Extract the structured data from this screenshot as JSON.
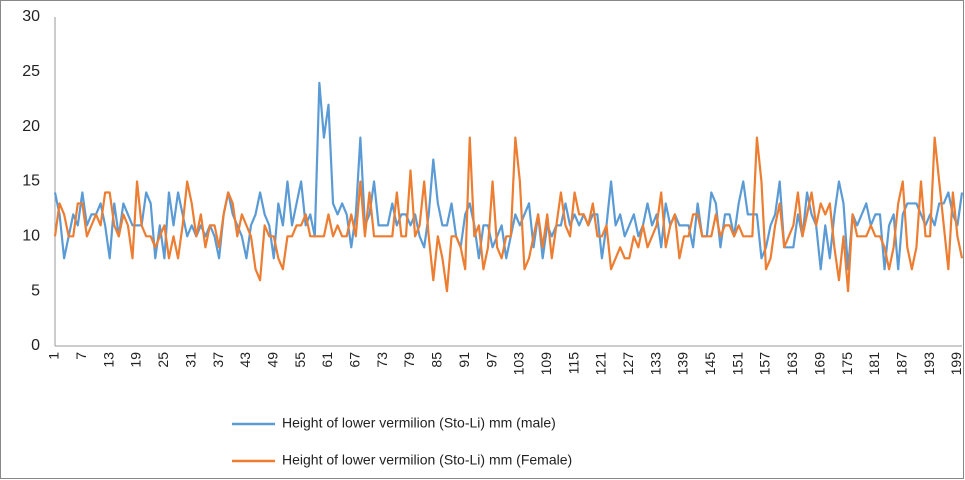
{
  "chart_data": {
    "type": "line",
    "categories": [
      1,
      null,
      null,
      null,
      null,
      null,
      7,
      null,
      null,
      null,
      null,
      null,
      13,
      null,
      null,
      null,
      null,
      null,
      19,
      null,
      null,
      null,
      null,
      null,
      25,
      null,
      null,
      null,
      null,
      null,
      31,
      null,
      null,
      null,
      null,
      null,
      37,
      null,
      null,
      null,
      null,
      null,
      43,
      null,
      null,
      null,
      null,
      null,
      49,
      null,
      null,
      null,
      null,
      null,
      55,
      null,
      null,
      null,
      null,
      null,
      61,
      null,
      null,
      null,
      null,
      null,
      67,
      null,
      null,
      null,
      null,
      null,
      73,
      null,
      null,
      null,
      null,
      null,
      79,
      null,
      null,
      null,
      null,
      null,
      85,
      null,
      null,
      null,
      null,
      null,
      91,
      null,
      null,
      null,
      null,
      null,
      97,
      null,
      null,
      null,
      null,
      null,
      103,
      null,
      null,
      null,
      null,
      null,
      109,
      null,
      null,
      null,
      null,
      null,
      115,
      null,
      null,
      null,
      null,
      null,
      121,
      null,
      null,
      null,
      null,
      null,
      127,
      null,
      null,
      null,
      null,
      null,
      133,
      null,
      null,
      null,
      null,
      null,
      139,
      null,
      null,
      null,
      null,
      null,
      145,
      null,
      null,
      null,
      null,
      null,
      151,
      null,
      null,
      null,
      null,
      null,
      157,
      null,
      null,
      null,
      null,
      null,
      163,
      null,
      null,
      null,
      null,
      null,
      169,
      null,
      null,
      null,
      null,
      null,
      175,
      null,
      null,
      null,
      null,
      null,
      181,
      null,
      null,
      null,
      null,
      null,
      187,
      null,
      null,
      null,
      null,
      null,
      193,
      null,
      null,
      null,
      null,
      null,
      199,
      null
    ],
    "series": [
      {
        "name": "Height of lower vermilion (Sto-Li) mm (male)",
        "color": "#5b9bd5",
        "values": [
          14,
          12,
          8,
          10,
          12,
          11,
          14,
          11,
          12,
          12,
          13,
          11,
          8,
          13,
          10,
          13,
          12,
          11,
          11,
          11,
          14,
          13,
          8,
          11,
          8,
          14,
          11,
          14,
          12,
          10,
          11,
          10,
          11,
          10,
          11,
          10,
          8,
          12,
          14,
          12,
          11,
          10,
          8,
          11,
          12,
          14,
          12,
          11,
          8,
          13,
          11,
          15,
          11,
          13,
          15,
          11,
          12,
          10,
          24,
          19,
          22,
          13,
          12,
          13,
          12,
          9,
          12,
          19,
          11,
          12,
          15,
          11,
          11,
          11,
          13,
          11,
          12,
          12,
          11,
          12,
          10,
          9,
          12,
          17,
          13,
          11,
          11,
          13,
          10,
          9,
          12,
          13,
          11,
          8,
          11,
          11,
          9,
          10,
          11,
          8,
          10,
          12,
          11,
          12,
          13,
          9,
          12,
          8,
          11,
          10,
          11,
          11,
          13,
          11,
          12,
          11,
          12,
          11,
          12,
          12,
          8,
          11,
          15,
          11,
          12,
          10,
          11,
          12,
          10,
          11,
          13,
          11,
          12,
          9,
          13,
          11,
          12,
          11,
          11,
          11,
          9,
          13,
          10,
          10,
          14,
          13,
          9,
          12,
          12,
          10,
          13,
          15,
          12,
          12,
          12,
          8,
          9,
          11,
          12,
          15,
          9,
          9,
          9,
          12,
          10,
          14,
          12,
          11,
          7,
          11,
          8,
          12,
          15,
          13,
          7,
          12,
          11,
          12,
          13,
          11,
          12,
          12,
          7,
          11,
          12,
          7,
          12,
          13,
          13,
          13,
          12,
          11,
          12,
          11,
          13,
          13,
          14,
          12,
          11,
          14
        ]
      },
      {
        "name": "Height of lower vermilion (Sto-Li) mm (Female)",
        "color": "#ed7d31",
        "values": [
          10,
          13,
          12,
          10,
          10,
          13,
          13,
          10,
          11,
          12,
          11,
          14,
          14,
          11,
          10,
          12,
          11,
          8,
          15,
          11,
          10,
          10,
          9,
          10,
          11,
          8,
          10,
          8,
          11,
          15,
          13,
          10,
          12,
          9,
          11,
          11,
          9,
          12,
          14,
          13,
          10,
          12,
          11,
          10,
          7,
          6,
          11,
          10,
          10,
          8,
          7,
          10,
          10,
          11,
          11,
          12,
          10,
          10,
          10,
          10,
          12,
          10,
          11,
          10,
          10,
          12,
          10,
          15,
          10,
          14,
          10,
          10,
          10,
          10,
          10,
          14,
          10,
          10,
          16,
          10,
          11,
          15,
          10,
          6,
          10,
          8,
          5,
          10,
          10,
          9,
          7,
          19,
          10,
          11,
          7,
          9,
          15,
          9,
          8,
          10,
          10,
          19,
          15,
          7,
          8,
          10,
          12,
          9,
          12,
          8,
          11,
          14,
          11,
          10,
          14,
          12,
          12,
          11,
          13,
          10,
          10,
          11,
          7,
          8,
          9,
          8,
          8,
          10,
          9,
          11,
          9,
          10,
          11,
          14,
          9,
          11,
          12,
          8,
          10,
          10,
          12,
          12,
          10,
          10,
          10,
          12,
          10,
          11,
          11,
          10,
          11,
          10,
          10,
          10,
          19,
          15,
          7,
          8,
          11,
          13,
          9,
          10,
          11,
          14,
          10,
          12,
          14,
          11,
          13,
          12,
          13,
          9,
          6,
          10,
          5,
          12,
          10,
          10,
          10,
          11,
          10,
          10,
          9,
          7,
          9,
          13,
          15,
          9,
          7,
          9,
          15,
          10,
          10,
          19,
          15,
          11,
          7,
          14,
          10,
          8
        ]
      }
    ],
    "ylim": [
      0,
      30
    ],
    "yticks": [
      0,
      5,
      10,
      15,
      20,
      25,
      30
    ],
    "grid": false
  }
}
